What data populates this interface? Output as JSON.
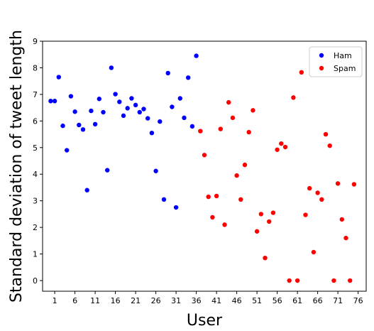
{
  "chart_data": {
    "type": "scatter",
    "title": "",
    "xlabel": "User",
    "ylabel": "Standard deviation of tweet length",
    "xlim": [
      -2,
      78
    ],
    "ylim": [
      -0.4,
      9
    ],
    "xticks": [
      1,
      6,
      11,
      16,
      21,
      26,
      31,
      36,
      41,
      46,
      51,
      56,
      61,
      66,
      71,
      76
    ],
    "yticks": [
      0,
      1,
      2,
      3,
      4,
      5,
      6,
      7,
      8,
      9
    ],
    "grid": false,
    "legend_position": "top-right",
    "series": [
      {
        "name": "Ham",
        "color": "#0000ff",
        "points": [
          [
            0,
            6.75
          ],
          [
            1,
            6.75
          ],
          [
            2,
            7.65
          ],
          [
            3,
            5.82
          ],
          [
            4,
            4.9
          ],
          [
            5,
            6.93
          ],
          [
            6,
            6.35
          ],
          [
            7,
            5.85
          ],
          [
            8,
            5.68
          ],
          [
            9,
            3.4
          ],
          [
            10,
            6.38
          ],
          [
            11,
            5.88
          ],
          [
            12,
            6.83
          ],
          [
            13,
            6.33
          ],
          [
            14,
            4.15
          ],
          [
            15,
            8.0
          ],
          [
            16,
            7.01
          ],
          [
            17,
            6.72
          ],
          [
            18,
            6.2
          ],
          [
            19,
            6.48
          ],
          [
            20,
            6.85
          ],
          [
            21,
            6.6
          ],
          [
            22,
            6.33
          ],
          [
            23,
            6.45
          ],
          [
            24,
            6.1
          ],
          [
            25,
            5.55
          ],
          [
            26,
            4.12
          ],
          [
            27,
            5.98
          ],
          [
            28,
            3.05
          ],
          [
            29,
            7.8
          ],
          [
            30,
            6.53
          ],
          [
            31,
            2.75
          ],
          [
            32,
            6.85
          ],
          [
            33,
            6.12
          ],
          [
            34,
            7.63
          ],
          [
            35,
            5.8
          ],
          [
            36,
            8.45
          ]
        ]
      },
      {
        "name": "Spam",
        "color": "#ff0000",
        "points": [
          [
            37,
            5.62
          ],
          [
            38,
            4.72
          ],
          [
            39,
            3.15
          ],
          [
            40,
            2.38
          ],
          [
            41,
            3.18
          ],
          [
            42,
            5.7
          ],
          [
            43,
            2.1
          ],
          [
            44,
            6.7
          ],
          [
            45,
            6.12
          ],
          [
            46,
            3.95
          ],
          [
            47,
            3.05
          ],
          [
            48,
            4.35
          ],
          [
            49,
            5.58
          ],
          [
            50,
            6.4
          ],
          [
            51,
            1.85
          ],
          [
            52,
            2.5
          ],
          [
            53,
            0.85
          ],
          [
            54,
            2.22
          ],
          [
            55,
            2.55
          ],
          [
            56,
            4.92
          ],
          [
            57,
            5.15
          ],
          [
            58,
            5.02
          ],
          [
            59,
            0.0
          ],
          [
            60,
            6.88
          ],
          [
            61,
            0.0
          ],
          [
            62,
            7.83
          ],
          [
            63,
            2.47
          ],
          [
            64,
            3.47
          ],
          [
            65,
            1.07
          ],
          [
            66,
            3.3
          ],
          [
            67,
            3.05
          ],
          [
            68,
            5.5
          ],
          [
            69,
            5.07
          ],
          [
            70,
            0.0
          ],
          [
            71,
            3.65
          ],
          [
            72,
            2.3
          ],
          [
            73,
            1.6
          ],
          [
            74,
            0.0
          ],
          [
            75,
            3.62
          ]
        ]
      }
    ]
  }
}
